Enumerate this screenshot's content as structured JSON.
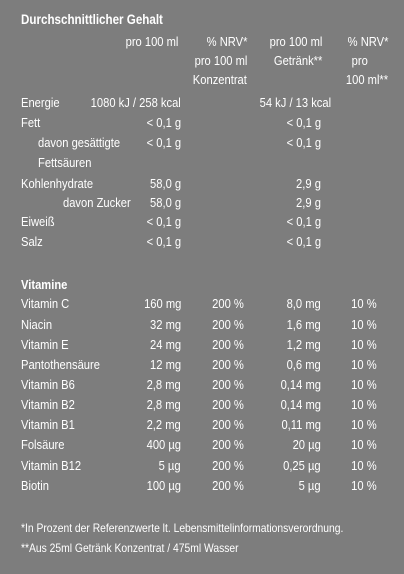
{
  "title": "Durchschnittlicher Gehalt",
  "headers": {
    "c1": "pro 100 ml",
    "c2_l1": "% NRV*",
    "c2_l2": "pro  100 ml",
    "c2_l3": "Konzentrat",
    "c3_l1": "pro 100 ml",
    "c3_l2": "Getränk**",
    "c4_l1": "% NRV*",
    "c4_l2": "pro",
    "c4_l3": "100 ml**"
  },
  "energy": {
    "label": "Energie",
    "v1": "1080 kJ / 258 kcal",
    "v3": "54 kJ / 13 kcal"
  },
  "nutrients": [
    {
      "label": "Fett",
      "v1": "< 0,1 g",
      "v3": "< 0,1 g"
    },
    {
      "label": "davon gesättigte",
      "v1": "< 0,1 g",
      "v3": "< 0,1 g"
    },
    {
      "label": "Fettsäuren",
      "v1": "",
      "v3": ""
    },
    {
      "label": "Kohlenhydrate",
      "v1": "58,0 g",
      "v3": "2,9 g"
    },
    {
      "label": "davon Zucker",
      "v1": "58,0 g",
      "v3": "2,9 g"
    },
    {
      "label": "Eiweiß",
      "v1": "< 0,1 g",
      "v3": "< 0,1 g"
    },
    {
      "label": "Salz",
      "v1": "< 0,1 g",
      "v3": "< 0,1 g"
    }
  ],
  "vitamins_title": "Vitamine",
  "vitamins": [
    {
      "label": "Vitamin C",
      "v1": "160 mg",
      "v2": "200 %",
      "v3": "8,0 mg",
      "v4": "10 %"
    },
    {
      "label": "Niacin",
      "v1": "32 mg",
      "v2": "200 %",
      "v3": "1,6 mg",
      "v4": "10 %"
    },
    {
      "label": "Vitamin E",
      "v1": "24 mg",
      "v2": "200 %",
      "v3": "1,2 mg",
      "v4": "10 %"
    },
    {
      "label": "Pantothensäure",
      "v1": "12 mg",
      "v2": "200 %",
      "v3": "0,6 mg",
      "v4": "10 %"
    },
    {
      "label": "Vitamin B6",
      "v1": "2,8 mg",
      "v2": "200 %",
      "v3": "0,14 mg",
      "v4": "10 %"
    },
    {
      "label": "Vitamin B2",
      "v1": "2,8 mg",
      "v2": "200 %",
      "v3": "0,14 mg",
      "v4": "10 %"
    },
    {
      "label": "Vitamin B1",
      "v1": "2,2 mg",
      "v2": "200 %",
      "v3": "0,11 mg",
      "v4": "10 %"
    },
    {
      "label": "Folsäure",
      "v1": "400 µg",
      "v2": "200 %",
      "v3": "20 µg",
      "v4": "10 %"
    },
    {
      "label": "Vitamin B12",
      "v1": "5 µg",
      "v2": "200 %",
      "v3": "0,25 µg",
      "v4": "10 %"
    },
    {
      "label": "Biotin",
      "v1": "100 µg",
      "v2": "200 %",
      "v3": "5 µg",
      "v4": "10 %"
    }
  ],
  "footnotes": [
    "*In Prozent der Referenzwerte lt. Lebensmittelinformationsverordnung.",
    "**Aus 25ml Getränk Konzentrat / 475ml Wasser"
  ]
}
